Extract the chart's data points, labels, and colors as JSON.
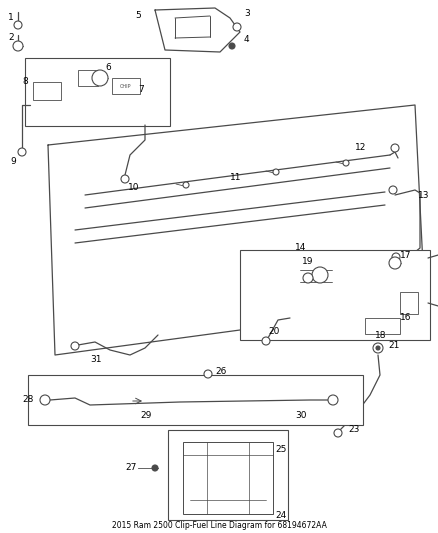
{
  "title": "2015 Ram 2500 Clip-Fuel Line Diagram for 68194672AA",
  "bg_color": "#ffffff",
  "lc": "#4a4a4a",
  "lw": 0.9,
  "fig_width": 4.38,
  "fig_height": 5.33,
  "dpi": 100,
  "label_fs": 6.5,
  "title_fs": 5.5
}
